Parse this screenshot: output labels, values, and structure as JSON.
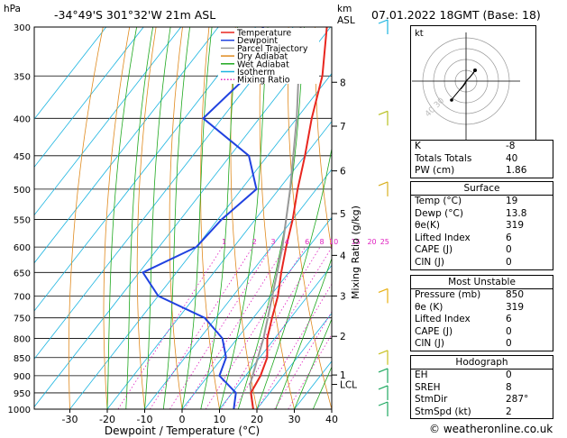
{
  "header": {
    "location": "-34°49'S  301°32'W  21m  ASL",
    "datetime": "07.01.2022  18GMT  (Base: 18)",
    "hpa_label": "hPa",
    "km_label": "km",
    "asl_label": "ASL"
  },
  "chart_data": {
    "type": "skewt",
    "xlabel": "Dewpoint / Temperature (°C)",
    "ylabel_right": "Mixing Ratio (g/kg)",
    "x_ticks": [
      -30,
      -20,
      -10,
      0,
      10,
      20,
      30,
      40
    ],
    "pressure_levels": [
      300,
      350,
      400,
      450,
      500,
      550,
      600,
      650,
      700,
      750,
      800,
      850,
      900,
      950,
      1000
    ],
    "km_ticks": [
      {
        "label": "8",
        "p": 357
      },
      {
        "label": "7",
        "p": 410
      },
      {
        "label": "6",
        "p": 472
      },
      {
        "label": "5",
        "p": 540
      },
      {
        "label": "4",
        "p": 616
      },
      {
        "label": "3",
        "p": 700
      },
      {
        "label": "2",
        "p": 795
      },
      {
        "label": "1",
        "p": 898
      },
      {
        "label": "LCL",
        "p": 925
      }
    ],
    "mixing_ratio_labels": [
      "1",
      "2",
      "3",
      "4",
      "6",
      "8",
      "10",
      "15",
      "20",
      "25"
    ],
    "legend": [
      {
        "name": "Temperature",
        "color": "#e8261f"
      },
      {
        "name": "Dewpoint",
        "color": "#2042e0"
      },
      {
        "name": "Parcel Trajectory",
        "color": "#999999"
      },
      {
        "name": "Dry Adiabat",
        "color": "#e08a1e"
      },
      {
        "name": "Wet Adiabat",
        "color": "#1ea81e"
      },
      {
        "name": "Isotherm",
        "color": "#1ab4e0"
      },
      {
        "name": "Mixing Ratio",
        "color": "#e020c0"
      }
    ],
    "temperature": [
      {
        "p": 1000,
        "t": 19
      },
      {
        "p": 950,
        "t": 15
      },
      {
        "p": 900,
        "t": 14
      },
      {
        "p": 850,
        "t": 12
      },
      {
        "p": 800,
        "t": 8
      },
      {
        "p": 750,
        "t": 5
      },
      {
        "p": 700,
        "t": 2
      },
      {
        "p": 650,
        "t": -2
      },
      {
        "p": 600,
        "t": -6
      },
      {
        "p": 550,
        "t": -10
      },
      {
        "p": 500,
        "t": -15
      },
      {
        "p": 450,
        "t": -20
      },
      {
        "p": 400,
        "t": -26
      },
      {
        "p": 350,
        "t": -32
      },
      {
        "p": 300,
        "t": -41
      }
    ],
    "dewpoint": [
      {
        "p": 1000,
        "t": 13.8
      },
      {
        "p": 950,
        "t": 11
      },
      {
        "p": 900,
        "t": 3
      },
      {
        "p": 850,
        "t": 1
      },
      {
        "p": 800,
        "t": -4
      },
      {
        "p": 750,
        "t": -13
      },
      {
        "p": 700,
        "t": -30
      },
      {
        "p": 650,
        "t": -39
      },
      {
        "p": 600,
        "t": -30
      },
      {
        "p": 550,
        "t": -29
      },
      {
        "p": 500,
        "t": -26
      },
      {
        "p": 450,
        "t": -35
      },
      {
        "p": 400,
        "t": -55
      },
      {
        "p": 350,
        "t": -52
      },
      {
        "p": 300,
        "t": -58
      }
    ],
    "parcel": [
      {
        "p": 1000,
        "t": 19
      },
      {
        "p": 925,
        "t": 13
      },
      {
        "p": 850,
        "t": 9.5
      },
      {
        "p": 800,
        "t": 7
      },
      {
        "p": 700,
        "t": 0.5
      },
      {
        "p": 600,
        "t": -7
      },
      {
        "p": 500,
        "t": -17
      },
      {
        "p": 400,
        "t": -30
      },
      {
        "p": 300,
        "t": -48
      }
    ]
  },
  "hodograph": {
    "label": "kt",
    "ring_labels": [
      "40",
      "30"
    ]
  },
  "indices": {
    "k_label": "K",
    "k": "-8",
    "tt_label": "Totals Totals",
    "tt": "40",
    "pw_label": "PW (cm)",
    "pw": "1.86"
  },
  "surface": {
    "title": "Surface",
    "rows": [
      {
        "label": "Temp (°C)",
        "value": "19"
      },
      {
        "label": "Dewp (°C)",
        "value": "13.8"
      },
      {
        "label": "θe(K)",
        "value": "319"
      },
      {
        "label": "Lifted Index",
        "value": "6"
      },
      {
        "label": "CAPE (J)",
        "value": "0"
      },
      {
        "label": "CIN (J)",
        "value": "0"
      }
    ]
  },
  "most_unstable": {
    "title": "Most Unstable",
    "rows": [
      {
        "label": "Pressure (mb)",
        "value": "850"
      },
      {
        "label": "θe (K)",
        "value": "319"
      },
      {
        "label": "Lifted Index",
        "value": "6"
      },
      {
        "label": "CAPE (J)",
        "value": "0"
      },
      {
        "label": "CIN (J)",
        "value": "0"
      }
    ]
  },
  "hodograph_table": {
    "title": "Hodograph",
    "rows": [
      {
        "label": "EH",
        "value": "0"
      },
      {
        "label": "SREH",
        "value": "8"
      },
      {
        "label": "StmDir",
        "value": "287°"
      },
      {
        "label": "StmSpd (kt)",
        "value": "2"
      }
    ]
  },
  "footer": {
    "copyright": "© weatheronline.co.uk"
  },
  "colors": {
    "temperature": "#e8261f",
    "dewpoint": "#2042e0",
    "parcel": "#999999"
  }
}
